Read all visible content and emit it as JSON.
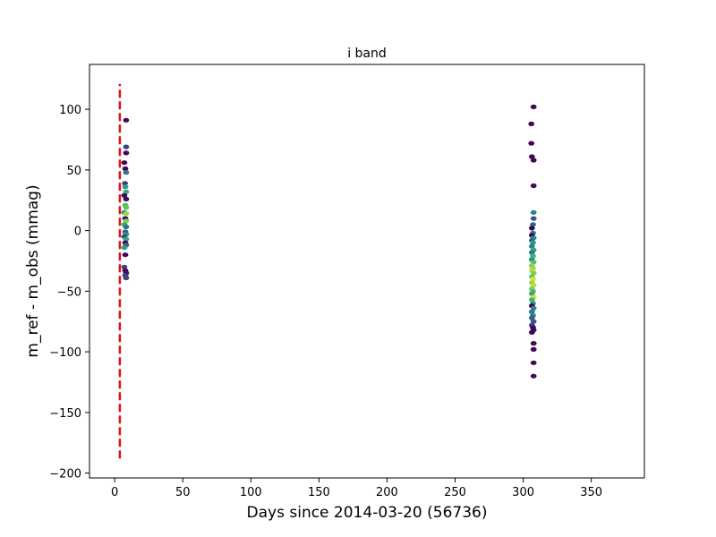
{
  "chart_data": {
    "type": "scatter",
    "title": "i band",
    "xlabel": "Days since 2014-03-20 (56736)",
    "ylabel": "m_ref - m_obs (mmag)",
    "xlim": [
      -18.5,
      389
    ],
    "ylim": [
      -204,
      137
    ],
    "x_ticks": [
      0,
      50,
      100,
      150,
      200,
      250,
      300,
      350
    ],
    "x_tick_labels": [
      "0",
      "50",
      "100",
      "150",
      "200",
      "250",
      "300",
      "350"
    ],
    "y_ticks": [
      100,
      50,
      0,
      -50,
      -100,
      -150,
      -200
    ],
    "y_tick_labels": [
      "100",
      "50",
      "0",
      "−50",
      "−100",
      "−150",
      "−200"
    ],
    "grid": false,
    "legend": "none",
    "colormap": "viridis",
    "reference_line": {
      "orientation": "vertical",
      "x": 3.8,
      "y_range": [
        -188,
        121
      ],
      "color": "#dd1111",
      "style": "dashed"
    },
    "points": [
      {
        "x": 8.4,
        "y": 91,
        "c": 0.02
      },
      {
        "x": 8.4,
        "y": 69,
        "c": 0.2
      },
      {
        "x": 8.4,
        "y": 64,
        "c": 0.02
      },
      {
        "x": 7.1,
        "y": 56,
        "c": 0.02
      },
      {
        "x": 7.8,
        "y": 51,
        "c": 0.02
      },
      {
        "x": 8.4,
        "y": 48,
        "c": 0.4
      },
      {
        "x": 7.5,
        "y": 39,
        "c": 0.2
      },
      {
        "x": 7.8,
        "y": 36,
        "c": 0.55
      },
      {
        "x": 8.4,
        "y": 32,
        "c": 0.6
      },
      {
        "x": 7.1,
        "y": 29,
        "c": 0.02
      },
      {
        "x": 8.4,
        "y": 26,
        "c": 0.02
      },
      {
        "x": 7.8,
        "y": 21,
        "c": 0.7
      },
      {
        "x": 8.4,
        "y": 19,
        "c": 0.75
      },
      {
        "x": 7.1,
        "y": 15,
        "c": 0.5
      },
      {
        "x": 8.4,
        "y": 14,
        "c": 0.85
      },
      {
        "x": 7.8,
        "y": 10,
        "c": 0.02
      },
      {
        "x": 8.4,
        "y": 8,
        "c": 0.8
      },
      {
        "x": 7.1,
        "y": 5,
        "c": 0.6
      },
      {
        "x": 8.4,
        "y": 3,
        "c": 0.4
      },
      {
        "x": 7.8,
        "y": -1,
        "c": 0.3
      },
      {
        "x": 8.4,
        "y": -3,
        "c": 0.5
      },
      {
        "x": 7.1,
        "y": -5,
        "c": 0.2
      },
      {
        "x": 8.4,
        "y": -7,
        "c": 0.6
      },
      {
        "x": 7.8,
        "y": -10,
        "c": 0.02
      },
      {
        "x": 8.4,
        "y": -12,
        "c": 0.3
      },
      {
        "x": 7.1,
        "y": -14,
        "c": 0.55
      },
      {
        "x": 7.8,
        "y": -20,
        "c": 0.02
      },
      {
        "x": 7.1,
        "y": -30,
        "c": 0.2
      },
      {
        "x": 7.8,
        "y": -33,
        "c": 0.02
      },
      {
        "x": 8.4,
        "y": -35,
        "c": 0.02
      },
      {
        "x": 7.8,
        "y": -37,
        "c": 0.2
      },
      {
        "x": 8.4,
        "y": -39,
        "c": 0.2
      },
      {
        "x": 307.6,
        "y": 102,
        "c": 0.02
      },
      {
        "x": 306.0,
        "y": 88,
        "c": 0.02
      },
      {
        "x": 306.0,
        "y": 72,
        "c": 0.02
      },
      {
        "x": 306.4,
        "y": 61,
        "c": 0.02
      },
      {
        "x": 307.6,
        "y": 58,
        "c": 0.02
      },
      {
        "x": 307.6,
        "y": 37,
        "c": 0.02
      },
      {
        "x": 307.6,
        "y": 15,
        "c": 0.45
      },
      {
        "x": 307.6,
        "y": 10,
        "c": 0.25
      },
      {
        "x": 307.2,
        "y": 5,
        "c": 0.3
      },
      {
        "x": 306.4,
        "y": 2,
        "c": 0.02
      },
      {
        "x": 307.2,
        "y": -2,
        "c": 0.4
      },
      {
        "x": 306.4,
        "y": -4,
        "c": 0.02
      },
      {
        "x": 307.6,
        "y": -6,
        "c": 0.5
      },
      {
        "x": 306.4,
        "y": -8,
        "c": 0.35
      },
      {
        "x": 307.2,
        "y": -10,
        "c": 0.55
      },
      {
        "x": 306.4,
        "y": -13,
        "c": 0.45
      },
      {
        "x": 307.6,
        "y": -16,
        "c": 0.6
      },
      {
        "x": 306.4,
        "y": -18,
        "c": 0.4
      },
      {
        "x": 307.2,
        "y": -21,
        "c": 0.65
      },
      {
        "x": 306.4,
        "y": -24,
        "c": 0.5
      },
      {
        "x": 307.6,
        "y": -26,
        "c": 0.7
      },
      {
        "x": 306.4,
        "y": -29,
        "c": 0.8
      },
      {
        "x": 307.2,
        "y": -31,
        "c": 0.85
      },
      {
        "x": 306.4,
        "y": -33,
        "c": 0.9
      },
      {
        "x": 307.6,
        "y": -35,
        "c": 0.8
      },
      {
        "x": 306.4,
        "y": -38,
        "c": 0.75
      },
      {
        "x": 307.2,
        "y": -40,
        "c": 0.95
      },
      {
        "x": 306.4,
        "y": -43,
        "c": 0.85
      },
      {
        "x": 307.6,
        "y": -45,
        "c": 0.9
      },
      {
        "x": 306.4,
        "y": -48,
        "c": 0.8
      },
      {
        "x": 307.2,
        "y": -50,
        "c": 0.7
      },
      {
        "x": 306.4,
        "y": -52,
        "c": 0.6
      },
      {
        "x": 307.6,
        "y": -55,
        "c": 0.95
      },
      {
        "x": 306.4,
        "y": -57,
        "c": 0.65
      },
      {
        "x": 307.2,
        "y": -60,
        "c": 0.55
      },
      {
        "x": 306.4,
        "y": -62,
        "c": 0.02
      },
      {
        "x": 307.6,
        "y": -64,
        "c": 0.45
      },
      {
        "x": 306.4,
        "y": -67,
        "c": 0.4
      },
      {
        "x": 307.2,
        "y": -70,
        "c": 0.45
      },
      {
        "x": 306.4,
        "y": -72,
        "c": 0.3
      },
      {
        "x": 307.6,
        "y": -75,
        "c": 0.25
      },
      {
        "x": 306.4,
        "y": -78,
        "c": 0.2
      },
      {
        "x": 307.2,
        "y": -80,
        "c": 0.02
      },
      {
        "x": 307.6,
        "y": -82,
        "c": 0.02
      },
      {
        "x": 306.4,
        "y": -84,
        "c": 0.02
      },
      {
        "x": 307.6,
        "y": -93,
        "c": 0.02
      },
      {
        "x": 307.6,
        "y": -98,
        "c": 0.02
      },
      {
        "x": 307.6,
        "y": -109,
        "c": 0.02
      },
      {
        "x": 307.6,
        "y": -120,
        "c": 0.02
      }
    ]
  }
}
